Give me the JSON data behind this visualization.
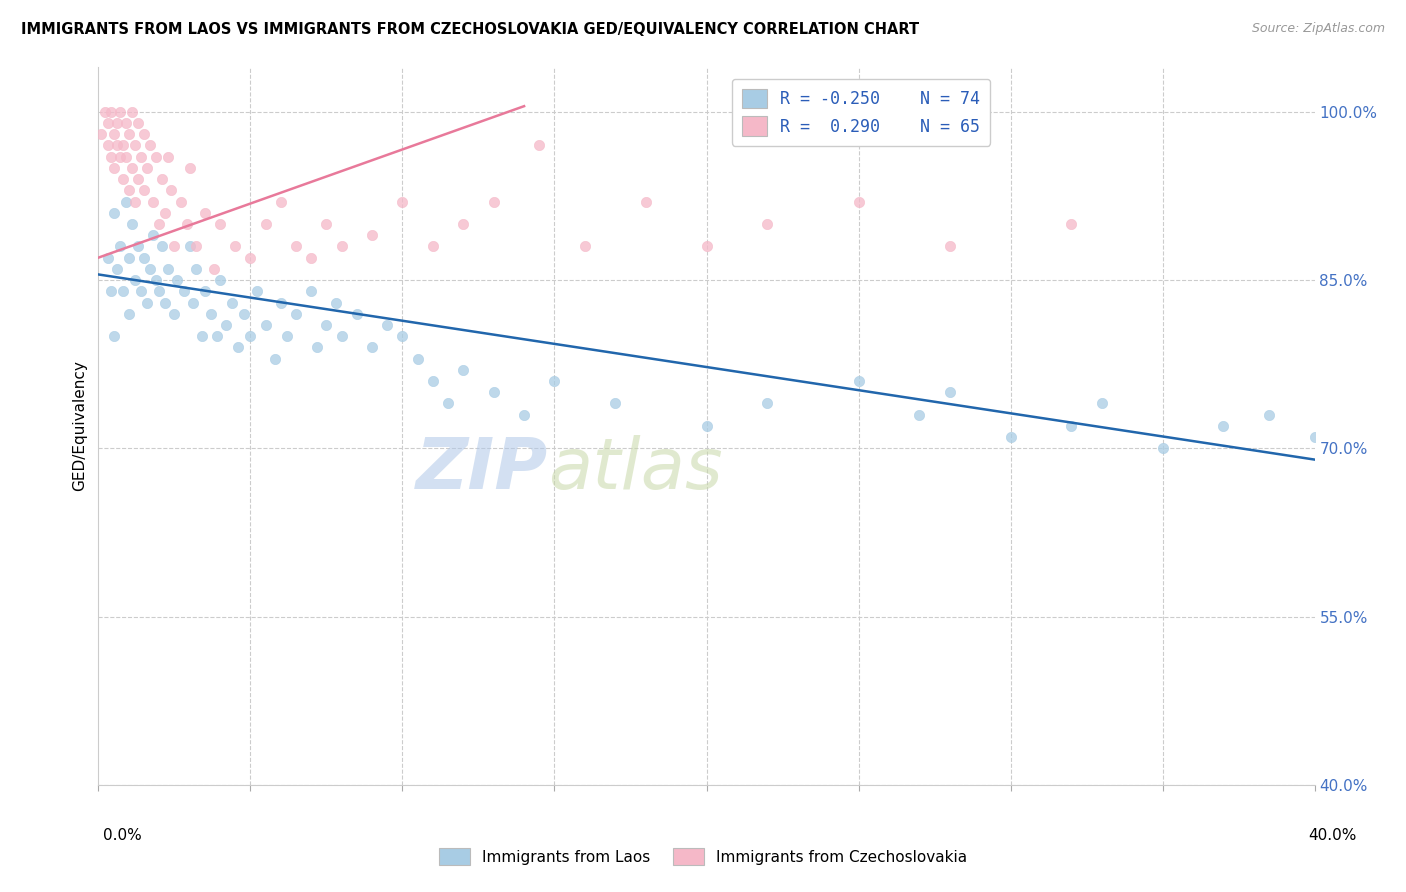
{
  "title": "IMMIGRANTS FROM LAOS VS IMMIGRANTS FROM CZECHOSLOVAKIA GED/EQUIVALENCY CORRELATION CHART",
  "source": "Source: ZipAtlas.com",
  "ylabel": "GED/Equivalency",
  "xlim": [
    0.0,
    40.0
  ],
  "ylim": [
    40.0,
    104.0
  ],
  "blue_R": -0.25,
  "blue_N": 74,
  "pink_R": 0.29,
  "pink_N": 65,
  "blue_color": "#a8cce4",
  "pink_color": "#f5b8c8",
  "blue_line_color": "#2166ac",
  "pink_line_color": "#e8799a",
  "legend_label_blue": "Immigrants from Laos",
  "legend_label_pink": "Immigrants from Czechoslovakia",
  "watermark_zip": "ZIP",
  "watermark_atlas": "atlas",
  "ytick_vals": [
    100.0,
    85.0,
    70.0,
    55.0,
    40.0
  ],
  "ytick_labels": [
    "100.0%",
    "85.0%",
    "70.0%",
    "55.0%",
    "40.0%"
  ],
  "blue_line_x0": 0.0,
  "blue_line_y0": 85.5,
  "blue_line_x1": 40.0,
  "blue_line_y1": 69.0,
  "pink_line_x0": 0.0,
  "pink_line_y0": 87.0,
  "pink_line_x1": 14.0,
  "pink_line_y1": 100.5,
  "blue_x": [
    0.3,
    0.4,
    0.5,
    0.5,
    0.6,
    0.7,
    0.8,
    0.9,
    1.0,
    1.0,
    1.1,
    1.2,
    1.3,
    1.4,
    1.5,
    1.6,
    1.7,
    1.8,
    1.9,
    2.0,
    2.1,
    2.2,
    2.3,
    2.5,
    2.6,
    2.8,
    3.0,
    3.1,
    3.2,
    3.4,
    3.5,
    3.7,
    3.9,
    4.0,
    4.2,
    4.4,
    4.6,
    4.8,
    5.0,
    5.2,
    5.5,
    5.8,
    6.0,
    6.2,
    6.5,
    7.0,
    7.2,
    7.5,
    7.8,
    8.0,
    8.5,
    9.0,
    9.5,
    10.0,
    10.5,
    11.0,
    11.5,
    12.0,
    13.0,
    14.0,
    15.0,
    17.0,
    20.0,
    22.0,
    25.0,
    27.0,
    28.0,
    30.0,
    32.0,
    33.0,
    35.0,
    37.0,
    38.5,
    40.0
  ],
  "blue_y": [
    87.0,
    84.0,
    80.0,
    91.0,
    86.0,
    88.0,
    84.0,
    92.0,
    87.0,
    82.0,
    90.0,
    85.0,
    88.0,
    84.0,
    87.0,
    83.0,
    86.0,
    89.0,
    85.0,
    84.0,
    88.0,
    83.0,
    86.0,
    82.0,
    85.0,
    84.0,
    88.0,
    83.0,
    86.0,
    80.0,
    84.0,
    82.0,
    80.0,
    85.0,
    81.0,
    83.0,
    79.0,
    82.0,
    80.0,
    84.0,
    81.0,
    78.0,
    83.0,
    80.0,
    82.0,
    84.0,
    79.0,
    81.0,
    83.0,
    80.0,
    82.0,
    79.0,
    81.0,
    80.0,
    78.0,
    76.0,
    74.0,
    77.0,
    75.0,
    73.0,
    76.0,
    74.0,
    72.0,
    74.0,
    76.0,
    73.0,
    75.0,
    71.0,
    72.0,
    74.0,
    70.0,
    72.0,
    73.0,
    71.0
  ],
  "pink_x": [
    0.1,
    0.2,
    0.3,
    0.3,
    0.4,
    0.4,
    0.5,
    0.5,
    0.6,
    0.6,
    0.7,
    0.7,
    0.8,
    0.8,
    0.9,
    0.9,
    1.0,
    1.0,
    1.1,
    1.1,
    1.2,
    1.2,
    1.3,
    1.3,
    1.4,
    1.5,
    1.5,
    1.6,
    1.7,
    1.8,
    1.9,
    2.0,
    2.1,
    2.2,
    2.3,
    2.4,
    2.5,
    2.7,
    2.9,
    3.0,
    3.2,
    3.5,
    3.8,
    4.0,
    4.5,
    5.0,
    5.5,
    6.0,
    6.5,
    7.0,
    7.5,
    8.0,
    9.0,
    10.0,
    11.0,
    12.0,
    13.0,
    14.5,
    16.0,
    18.0,
    20.0,
    22.0,
    25.0,
    28.0,
    32.0
  ],
  "pink_y": [
    98.0,
    100.0,
    97.0,
    99.0,
    96.0,
    100.0,
    98.0,
    95.0,
    97.0,
    99.0,
    96.0,
    100.0,
    97.0,
    94.0,
    99.0,
    96.0,
    93.0,
    98.0,
    95.0,
    100.0,
    92.0,
    97.0,
    94.0,
    99.0,
    96.0,
    93.0,
    98.0,
    95.0,
    97.0,
    92.0,
    96.0,
    90.0,
    94.0,
    91.0,
    96.0,
    93.0,
    88.0,
    92.0,
    90.0,
    95.0,
    88.0,
    91.0,
    86.0,
    90.0,
    88.0,
    87.0,
    90.0,
    92.0,
    88.0,
    87.0,
    90.0,
    88.0,
    89.0,
    92.0,
    88.0,
    90.0,
    92.0,
    97.0,
    88.0,
    92.0,
    88.0,
    90.0,
    92.0,
    88.0,
    90.0
  ]
}
